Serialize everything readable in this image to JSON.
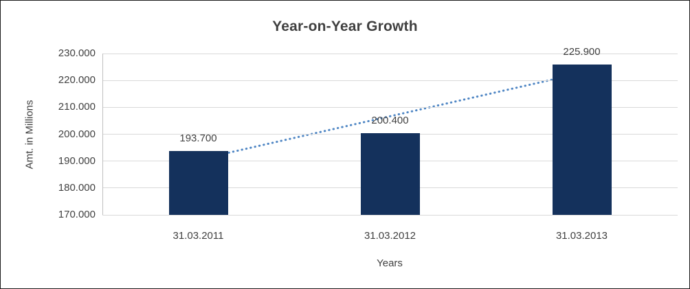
{
  "chart_data": {
    "type": "bar",
    "title": "Year-on-Year Growth",
    "categories": [
      "31.03.2011",
      "31.03.2012",
      "31.03.2013"
    ],
    "values": [
      193.7,
      200.4,
      225.9
    ],
    "value_labels": [
      "193.700",
      "200.400",
      "225.900"
    ],
    "xlabel": "Years",
    "ylabel": "Amt. in Millions",
    "ylim": [
      170,
      230
    ],
    "ytick_step": 10,
    "ytick_labels": [
      "230.000",
      "220.000",
      "210.000",
      "200.000",
      "190.000",
      "180.000",
      "170.000"
    ],
    "grid": true,
    "legend": false,
    "bar_color": "#14315c",
    "gridline_color": "#d9d9d9",
    "trendline": {
      "style": "dotted",
      "color": "#4f86c4",
      "start_value": 190.57,
      "end_value": 222.77
    }
  }
}
